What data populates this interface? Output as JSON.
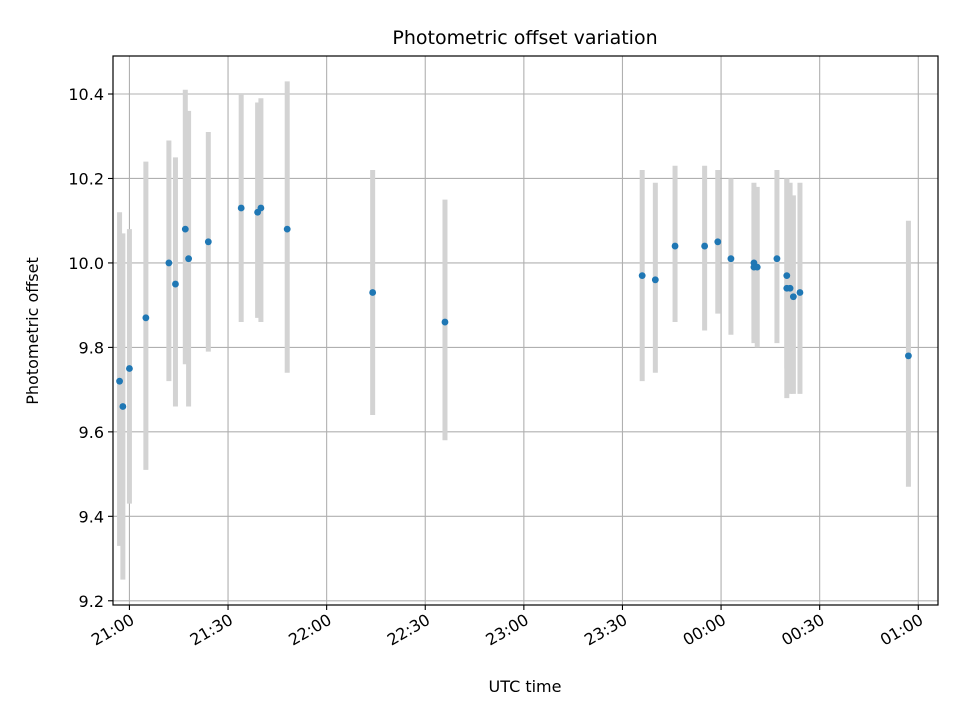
{
  "chart_data": {
    "type": "scatter",
    "title": "Photometric offset variation",
    "xlabel": "UTC time",
    "ylabel": "Photometric offset",
    "xlim": [
      "20:55",
      "01:06"
    ],
    "ylim": [
      9.19,
      10.49
    ],
    "x_ticks": [
      "21:00",
      "21:30",
      "22:00",
      "22:30",
      "23:00",
      "23:30",
      "00:00",
      "00:30",
      "01:00"
    ],
    "y_ticks": [
      "9.2",
      "9.4",
      "9.6",
      "9.8",
      "10.0",
      "10.2",
      "10.4"
    ],
    "grid": true,
    "colors": {
      "points": "#1f77b4",
      "errorbars": "#d3d3d3",
      "grid": "#b0b0b0"
    },
    "points": [
      {
        "t": "20:57",
        "y": 9.72,
        "ylo": 9.33,
        "yhi": 10.12
      },
      {
        "t": "20:58",
        "y": 9.66,
        "ylo": 9.25,
        "yhi": 10.07
      },
      {
        "t": "21:00",
        "y": 9.75,
        "ylo": 9.43,
        "yhi": 10.08
      },
      {
        "t": "21:05",
        "y": 9.87,
        "ylo": 9.51,
        "yhi": 10.24
      },
      {
        "t": "21:12",
        "y": 10.0,
        "ylo": 9.72,
        "yhi": 10.29
      },
      {
        "t": "21:14",
        "y": 9.95,
        "ylo": 9.66,
        "yhi": 10.25
      },
      {
        "t": "21:17",
        "y": 10.08,
        "ylo": 9.76,
        "yhi": 10.41
      },
      {
        "t": "21:18",
        "y": 10.01,
        "ylo": 9.66,
        "yhi": 10.36
      },
      {
        "t": "21:24",
        "y": 10.05,
        "ylo": 9.79,
        "yhi": 10.31
      },
      {
        "t": "21:34",
        "y": 10.13,
        "ylo": 9.86,
        "yhi": 10.4
      },
      {
        "t": "21:39",
        "y": 10.12,
        "ylo": 9.87,
        "yhi": 10.38
      },
      {
        "t": "21:40",
        "y": 10.13,
        "ylo": 9.86,
        "yhi": 10.39
      },
      {
        "t": "21:48",
        "y": 10.08,
        "ylo": 9.74,
        "yhi": 10.43
      },
      {
        "t": "22:14",
        "y": 9.93,
        "ylo": 9.64,
        "yhi": 10.22
      },
      {
        "t": "22:36",
        "y": 9.86,
        "ylo": 9.58,
        "yhi": 10.15
      },
      {
        "t": "23:36",
        "y": 9.97,
        "ylo": 9.72,
        "yhi": 10.22
      },
      {
        "t": "23:40",
        "y": 9.96,
        "ylo": 9.74,
        "yhi": 10.19
      },
      {
        "t": "23:46",
        "y": 10.04,
        "ylo": 9.86,
        "yhi": 10.23
      },
      {
        "t": "23:55",
        "y": 10.04,
        "ylo": 9.84,
        "yhi": 10.23
      },
      {
        "t": "23:59",
        "y": 10.05,
        "ylo": 9.88,
        "yhi": 10.22
      },
      {
        "t": "00:03",
        "y": 10.01,
        "ylo": 9.83,
        "yhi": 10.2
      },
      {
        "t": "00:10",
        "y": 10.0,
        "ylo": 9.81,
        "yhi": 10.19
      },
      {
        "t": "00:10",
        "y": 9.99,
        "ylo": 9.82,
        "yhi": 10.17
      },
      {
        "t": "00:11",
        "y": 9.99,
        "ylo": 9.8,
        "yhi": 10.18
      },
      {
        "t": "00:17",
        "y": 10.01,
        "ylo": 9.81,
        "yhi": 10.22
      },
      {
        "t": "00:20",
        "y": 9.97,
        "ylo": 9.75,
        "yhi": 10.2
      },
      {
        "t": "00:20",
        "y": 9.94,
        "ylo": 9.68,
        "yhi": 10.2
      },
      {
        "t": "00:21",
        "y": 9.94,
        "ylo": 9.69,
        "yhi": 10.19
      },
      {
        "t": "00:22",
        "y": 9.92,
        "ylo": 9.69,
        "yhi": 10.16
      },
      {
        "t": "00:24",
        "y": 9.93,
        "ylo": 9.69,
        "yhi": 10.19
      },
      {
        "t": "00:57",
        "y": 9.78,
        "ylo": 9.47,
        "yhi": 10.1
      }
    ]
  }
}
